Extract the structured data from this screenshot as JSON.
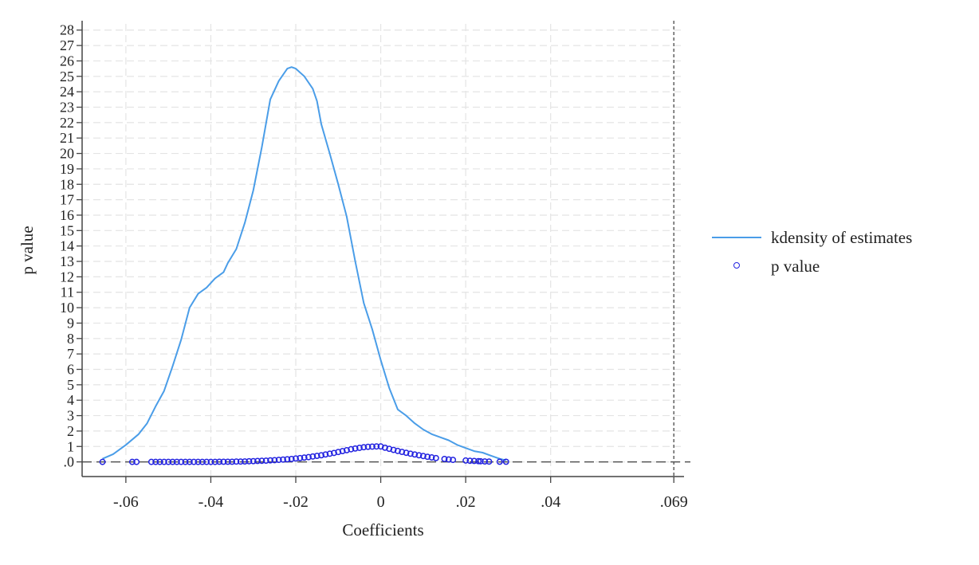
{
  "chart_data": {
    "type": "line",
    "xlabel": "Coefficients",
    "ylabel": "p value",
    "xlim": [
      -0.0703,
      0.0714
    ],
    "ylim": [
      -0.95,
      28.4
    ],
    "x_ticks": [
      {
        "value": -0.06,
        "label": "-.06"
      },
      {
        "value": -0.04,
        "label": "-.04"
      },
      {
        "value": -0.02,
        "label": "-.02"
      },
      {
        "value": 0,
        "label": "0"
      },
      {
        "value": 0.02,
        "label": ".02"
      },
      {
        "value": 0.04,
        "label": ".04"
      },
      {
        "value": 0.069,
        "label": ".069"
      }
    ],
    "y_ticks": [
      {
        "value": 0,
        "label": ".0"
      },
      {
        "value": 1,
        "label": "1"
      },
      {
        "value": 2,
        "label": "2"
      },
      {
        "value": 3,
        "label": "3"
      },
      {
        "value": 4,
        "label": "4"
      },
      {
        "value": 5,
        "label": "5"
      },
      {
        "value": 6,
        "label": "6"
      },
      {
        "value": 7,
        "label": "7"
      },
      {
        "value": 8,
        "label": "8"
      },
      {
        "value": 9,
        "label": "9"
      },
      {
        "value": 10,
        "label": "10"
      },
      {
        "value": 11,
        "label": "11"
      },
      {
        "value": 12,
        "label": "12"
      },
      {
        "value": 13,
        "label": "13"
      },
      {
        "value": 14,
        "label": "14"
      },
      {
        "value": 15,
        "label": "15"
      },
      {
        "value": 16,
        "label": "16"
      },
      {
        "value": 17,
        "label": "17"
      },
      {
        "value": 18,
        "label": "18"
      },
      {
        "value": 19,
        "label": "19"
      },
      {
        "value": 20,
        "label": "20"
      },
      {
        "value": 21,
        "label": "21"
      },
      {
        "value": 22,
        "label": "22"
      },
      {
        "value": 23,
        "label": "23"
      },
      {
        "value": 24,
        "label": "24"
      },
      {
        "value": 25,
        "label": "25"
      },
      {
        "value": 26,
        "label": "26"
      },
      {
        "value": 27,
        "label": "27"
      },
      {
        "value": 28,
        "label": "28"
      }
    ],
    "grid": true,
    "reference_lines": {
      "vertical_x": 0.069,
      "horizontal_y": 0
    },
    "legend_position": "right",
    "colors": {
      "density": "#4a9de8",
      "pvalue": "#2323e0",
      "reference": "#555555",
      "grid": "#e4e4e4"
    },
    "series": [
      {
        "name": "kdensity of estimates",
        "type": "line",
        "x": [
          -0.0655,
          -0.063,
          -0.06,
          -0.057,
          -0.055,
          -0.053,
          -0.051,
          -0.049,
          -0.047,
          -0.045,
          -0.043,
          -0.041,
          -0.039,
          -0.037,
          -0.036,
          -0.034,
          -0.032,
          -0.03,
          -0.028,
          -0.026,
          -0.024,
          -0.022,
          -0.021,
          -0.02,
          -0.018,
          -0.016,
          -0.015,
          -0.014,
          -0.012,
          -0.01,
          -0.008,
          -0.006,
          -0.004,
          -0.002,
          0.0,
          0.002,
          0.004,
          0.006,
          0.008,
          0.01,
          0.012,
          0.014,
          0.016,
          0.018,
          0.02,
          0.022,
          0.024,
          0.026,
          0.028,
          0.0295
        ],
        "y": [
          0.2,
          0.5,
          1.1,
          1.8,
          2.5,
          3.6,
          4.6,
          6.2,
          7.9,
          10.0,
          10.9,
          11.3,
          11.9,
          12.3,
          12.9,
          13.8,
          15.5,
          17.6,
          20.4,
          23.5,
          24.7,
          25.5,
          25.6,
          25.5,
          25.0,
          24.2,
          23.4,
          21.9,
          20.0,
          18.0,
          15.9,
          13.0,
          10.3,
          8.6,
          6.6,
          4.8,
          3.4,
          3.0,
          2.5,
          2.1,
          1.8,
          1.6,
          1.4,
          1.1,
          0.9,
          0.7,
          0.6,
          0.4,
          0.2,
          0.1
        ]
      },
      {
        "name": "p value",
        "type": "scatter",
        "x": [
          -0.0655,
          -0.0585,
          -0.0575,
          -0.054,
          -0.053,
          -0.052,
          -0.051,
          -0.05,
          -0.049,
          -0.048,
          -0.047,
          -0.046,
          -0.045,
          -0.044,
          -0.043,
          -0.042,
          -0.041,
          -0.04,
          -0.039,
          -0.038,
          -0.037,
          -0.036,
          -0.035,
          -0.034,
          -0.033,
          -0.032,
          -0.031,
          -0.03,
          -0.029,
          -0.028,
          -0.027,
          -0.026,
          -0.025,
          -0.024,
          -0.023,
          -0.022,
          -0.021,
          -0.02,
          -0.019,
          -0.018,
          -0.017,
          -0.016,
          -0.015,
          -0.014,
          -0.013,
          -0.012,
          -0.011,
          -0.01,
          -0.009,
          -0.008,
          -0.007,
          -0.006,
          -0.005,
          -0.004,
          -0.003,
          -0.002,
          -0.001,
          0.0,
          0.001,
          0.002,
          0.003,
          0.004,
          0.005,
          0.006,
          0.007,
          0.008,
          0.009,
          0.01,
          0.011,
          0.012,
          0.013,
          0.015,
          0.016,
          0.017,
          0.02,
          0.021,
          0.022,
          0.023,
          0.0235,
          0.0245,
          0.0255,
          0.028,
          0.0295
        ],
        "y": [
          0.0,
          0.0,
          0.0,
          0.0,
          0.0,
          0.0,
          0.0,
          0.0,
          0.0,
          0.0,
          0.0,
          0.0,
          0.0,
          0.0,
          0.0,
          0.0,
          0.0,
          0.0,
          0.0,
          0.01,
          0.01,
          0.01,
          0.01,
          0.02,
          0.02,
          0.03,
          0.04,
          0.05,
          0.06,
          0.07,
          0.08,
          0.1,
          0.11,
          0.13,
          0.15,
          0.17,
          0.19,
          0.22,
          0.25,
          0.28,
          0.31,
          0.35,
          0.39,
          0.43,
          0.48,
          0.53,
          0.58,
          0.64,
          0.7,
          0.76,
          0.82,
          0.87,
          0.91,
          0.95,
          0.98,
          0.99,
          1.0,
          1.0,
          0.92,
          0.85,
          0.78,
          0.71,
          0.65,
          0.59,
          0.53,
          0.48,
          0.43,
          0.38,
          0.33,
          0.29,
          0.25,
          0.19,
          0.16,
          0.13,
          0.09,
          0.07,
          0.06,
          0.05,
          0.04,
          0.03,
          0.02,
          0.01,
          0.01
        ]
      }
    ]
  },
  "legend": {
    "items": [
      {
        "label": "kdensity of estimates",
        "icon": "line"
      },
      {
        "label": "p value",
        "icon": "hollow-circle"
      }
    ]
  }
}
